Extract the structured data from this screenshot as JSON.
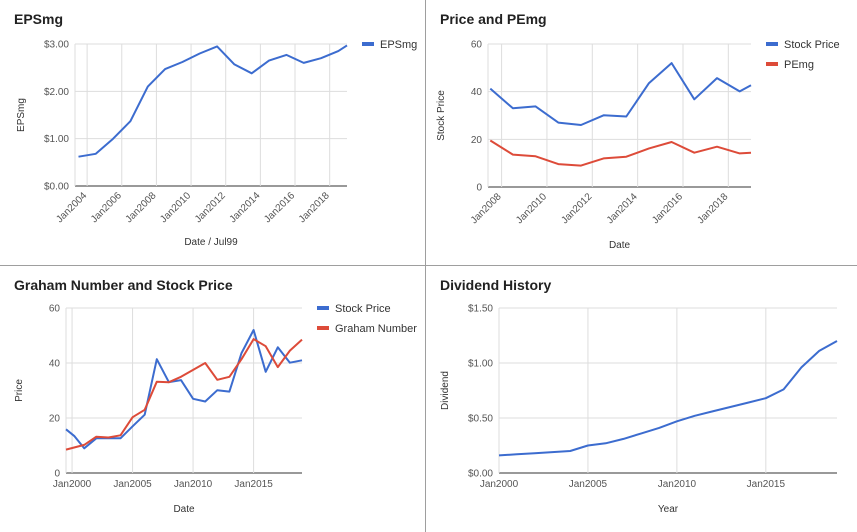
{
  "chart_data": [
    {
      "type": "line",
      "title": "EPSmg",
      "xlabel": "Date / Jul99",
      "ylabel": "EPSmg",
      "xlim": [
        2003.3,
        2019.0
      ],
      "ylim": [
        0,
        3
      ],
      "y_ticks": [
        0,
        1,
        2,
        3
      ],
      "y_tick_labels": [
        "$0.00",
        "$1.00",
        "$2.00",
        "$3.00"
      ],
      "x_ticks": [
        2004,
        2006,
        2008,
        2010,
        2012,
        2014,
        2016,
        2018
      ],
      "x_tick_labels": [
        "Jan2004",
        "Jan2006",
        "Jan2008",
        "Jan2010",
        "Jan2012",
        "Jan2014",
        "Jan2016",
        "Jan2018"
      ],
      "legend_position": "top-right",
      "series": [
        {
          "name": "EPSmg",
          "color": "#3c6ccf",
          "x": [
            2003.5,
            2004.5,
            2005.5,
            2006.5,
            2007.5,
            2008.5,
            2009.5,
            2010.5,
            2011.5,
            2012.5,
            2013.5,
            2014.5,
            2015.5,
            2016.5,
            2017.5,
            2018.5,
            2019.0
          ],
          "y": [
            0.62,
            0.68,
            1.0,
            1.37,
            2.1,
            2.47,
            2.62,
            2.8,
            2.95,
            2.57,
            2.38,
            2.65,
            2.77,
            2.6,
            2.7,
            2.85,
            2.97
          ]
        }
      ]
    },
    {
      "type": "line",
      "title": "Price and PEmg",
      "xlabel": "Date",
      "ylabel": "Stock Price",
      "xlim": [
        2007.4,
        2019.0
      ],
      "ylim": [
        0,
        60
      ],
      "y_ticks": [
        0,
        20,
        40,
        60
      ],
      "y_tick_labels": [
        "0",
        "20",
        "40",
        "60"
      ],
      "x_ticks": [
        2008,
        2010,
        2012,
        2014,
        2016,
        2018
      ],
      "x_tick_labels": [
        "Jan2008",
        "Jan2010",
        "Jan2012",
        "Jan2014",
        "Jan2016",
        "Jan2018"
      ],
      "legend_position": "top-right",
      "series": [
        {
          "name": "Stock Price",
          "color": "#3c6ccf",
          "x": [
            2007.5,
            2008.5,
            2009.5,
            2010.5,
            2011.5,
            2012.5,
            2013.5,
            2014.5,
            2015.5,
            2016.5,
            2017.5,
            2018.5,
            2019.0
          ],
          "y": [
            41.3,
            33.0,
            33.8,
            27.0,
            26.0,
            30.1,
            29.6,
            43.6,
            52.0,
            36.8,
            45.7,
            40.1,
            42.7
          ]
        },
        {
          "name": "PEmg",
          "color": "#dd4b39",
          "x": [
            2007.5,
            2008.5,
            2009.5,
            2010.5,
            2011.5,
            2012.5,
            2013.5,
            2014.5,
            2015.5,
            2016.5,
            2017.5,
            2018.5,
            2019.0
          ],
          "y": [
            19.5,
            13.6,
            12.9,
            9.6,
            9.0,
            12.0,
            12.7,
            16.2,
            18.9,
            14.4,
            16.9,
            14.1,
            14.4
          ]
        }
      ]
    },
    {
      "type": "line",
      "title": "Graham Number and Stock Price",
      "xlabel": "Date",
      "ylabel": "Price",
      "xlim": [
        1999.5,
        2019.0
      ],
      "ylim": [
        0,
        60
      ],
      "y_ticks": [
        0,
        20,
        40,
        60
      ],
      "y_tick_labels": [
        "0",
        "20",
        "40",
        "60"
      ],
      "x_ticks": [
        2000,
        2005,
        2010,
        2015
      ],
      "x_tick_labels": [
        "Jan2000",
        "Jan2005",
        "Jan2010",
        "Jan2015"
      ],
      "legend_position": "top-right",
      "series": [
        {
          "name": "Stock Price",
          "color": "#3c6ccf",
          "x": [
            1999.5,
            2000.2,
            2001.0,
            2002.0,
            2003.0,
            2004.0,
            2005.0,
            2006.0,
            2007.0,
            2008.0,
            2009.0,
            2010.0,
            2011.0,
            2012.0,
            2013.0,
            2014.0,
            2015.0,
            2016.0,
            2017.0,
            2018.0,
            2019.0
          ],
          "y": [
            15.9,
            13.4,
            9.0,
            12.6,
            12.6,
            12.6,
            17.0,
            21.2,
            41.4,
            33.0,
            33.8,
            27.0,
            26.0,
            30.1,
            29.6,
            43.6,
            52.0,
            36.8,
            45.7,
            40.1,
            41.0
          ]
        },
        {
          "name": "Graham Number",
          "color": "#dd4b39",
          "x": [
            1999.5,
            2001.0,
            2002.0,
            2003.0,
            2004.0,
            2005.0,
            2006.0,
            2007.0,
            2008.0,
            2009.0,
            2010.0,
            2011.0,
            2012.0,
            2013.0,
            2014.0,
            2015.0,
            2016.0,
            2017.0,
            2018.0,
            2019.0
          ],
          "y": [
            8.5,
            10.2,
            13.2,
            12.9,
            13.7,
            20.3,
            23.0,
            33.2,
            33.0,
            35.0,
            37.5,
            40.0,
            33.9,
            35.0,
            41.4,
            48.7,
            46.1,
            38.5,
            44.5,
            48.5
          ]
        }
      ]
    },
    {
      "type": "line",
      "title": "Dividend History",
      "xlabel": "Year",
      "ylabel": "Dividend",
      "xlim": [
        2000,
        2019.0
      ],
      "ylim": [
        0,
        1.5
      ],
      "y_ticks": [
        0,
        0.5,
        1.0,
        1.5
      ],
      "y_tick_labels": [
        "$0.00",
        "$0.50",
        "$1.00",
        "$1.50"
      ],
      "x_ticks": [
        2000,
        2005,
        2010,
        2015
      ],
      "x_tick_labels": [
        "Jan2000",
        "Jan2005",
        "Jan2010",
        "Jan2015"
      ],
      "series": [
        {
          "name": "Dividend",
          "color": "#3c6ccf",
          "x": [
            2000,
            2001,
            2002,
            2003,
            2004,
            2005,
            2006,
            2007,
            2008,
            2009,
            2010,
            2011,
            2012,
            2013,
            2014,
            2015,
            2016,
            2017,
            2018,
            2019
          ],
          "y": [
            0.16,
            0.17,
            0.18,
            0.19,
            0.2,
            0.25,
            0.27,
            0.31,
            0.36,
            0.41,
            0.47,
            0.52,
            0.56,
            0.6,
            0.64,
            0.68,
            0.76,
            0.96,
            1.11,
            1.2
          ]
        }
      ]
    }
  ]
}
